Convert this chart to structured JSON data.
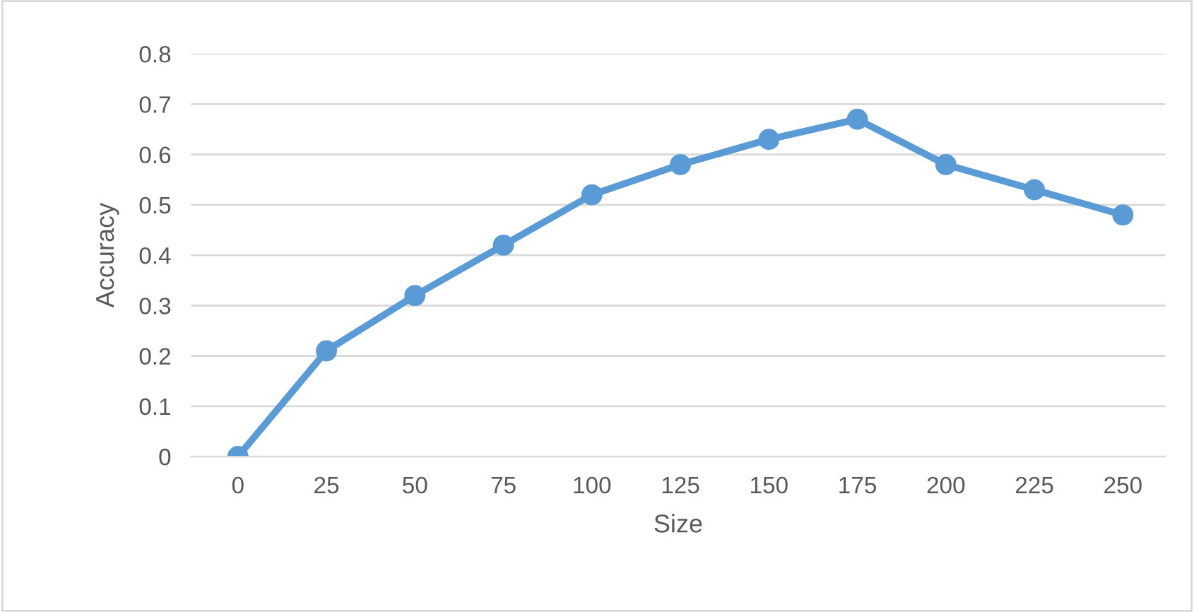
{
  "chart_data": {
    "type": "line",
    "xlabel": "Size",
    "ylabel": "Accuracy",
    "categories": [
      "0",
      "25",
      "50",
      "75",
      "100",
      "125",
      "150",
      "175",
      "200",
      "225",
      "250"
    ],
    "series": [
      {
        "color": "#5b9bd5",
        "values": [
          0,
          0.21,
          0.32,
          0.42,
          0.52,
          0.58,
          0.63,
          0.67,
          0.58,
          0.53,
          0.48
        ]
      }
    ],
    "ylim": [
      0,
      0.8
    ],
    "yticks": [
      0,
      0.1,
      0.2,
      0.3,
      0.4,
      0.5,
      0.6,
      0.7,
      0.8
    ],
    "grid": "y",
    "legend": false,
    "marker": "circle",
    "line_style": "solid"
  }
}
